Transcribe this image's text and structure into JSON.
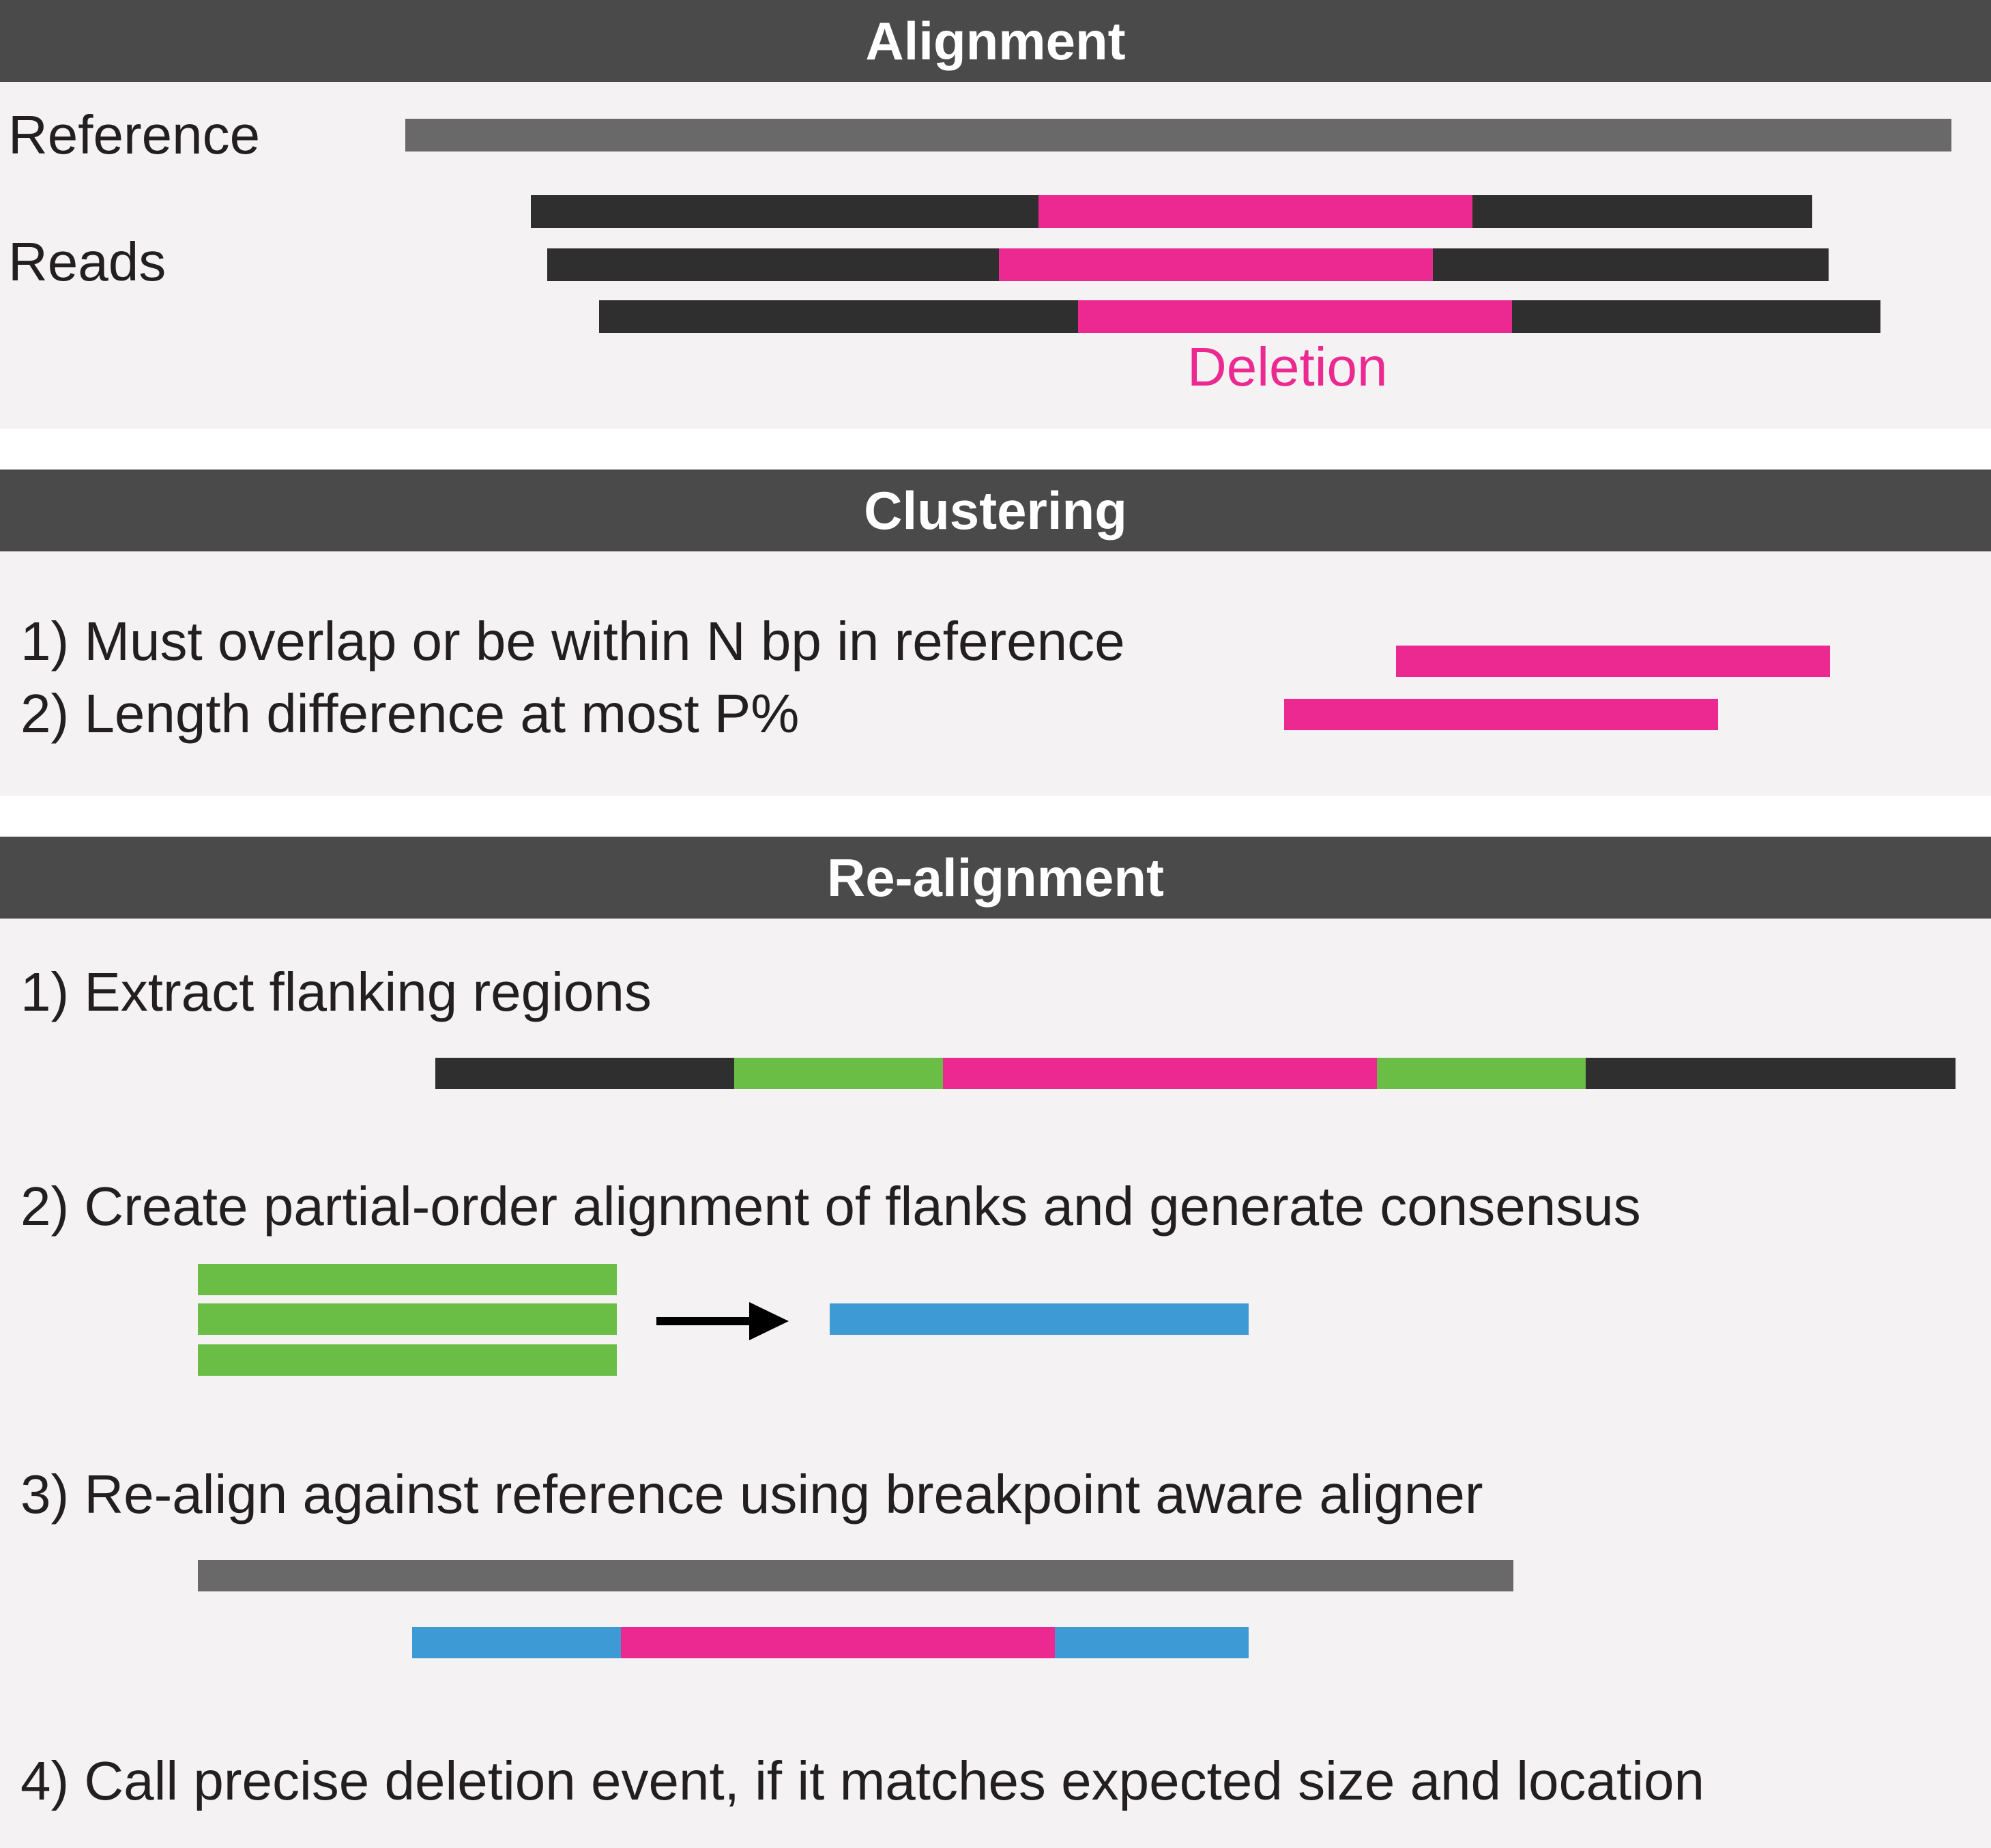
{
  "colors": {
    "header_bg": "#4a4a4a",
    "panel_bg": "#f4f2f2",
    "reference": "#696969",
    "read": "#2f2f2f",
    "deletion": "#ec2990",
    "flank": "#6abd45",
    "consensus": "#3e9ad5",
    "arrow": "#000000"
  },
  "alignment": {
    "title": "Alignment",
    "reference_label": "Reference",
    "reads_label": "Reads",
    "deletion_label": "Deletion"
  },
  "clustering": {
    "title": "Clustering",
    "rules": [
      "1) Must overlap or be within N bp in reference",
      "2) Length difference at most P%"
    ]
  },
  "realignment": {
    "title": "Re-alignment",
    "steps": [
      "1) Extract flanking regions",
      "2) Create partial-order alignment of flanks and generate consensus",
      "3) Re-align against reference using breakpoint aware aligner",
      "4) Call precise deletion event, if it matches expected size and location"
    ]
  }
}
